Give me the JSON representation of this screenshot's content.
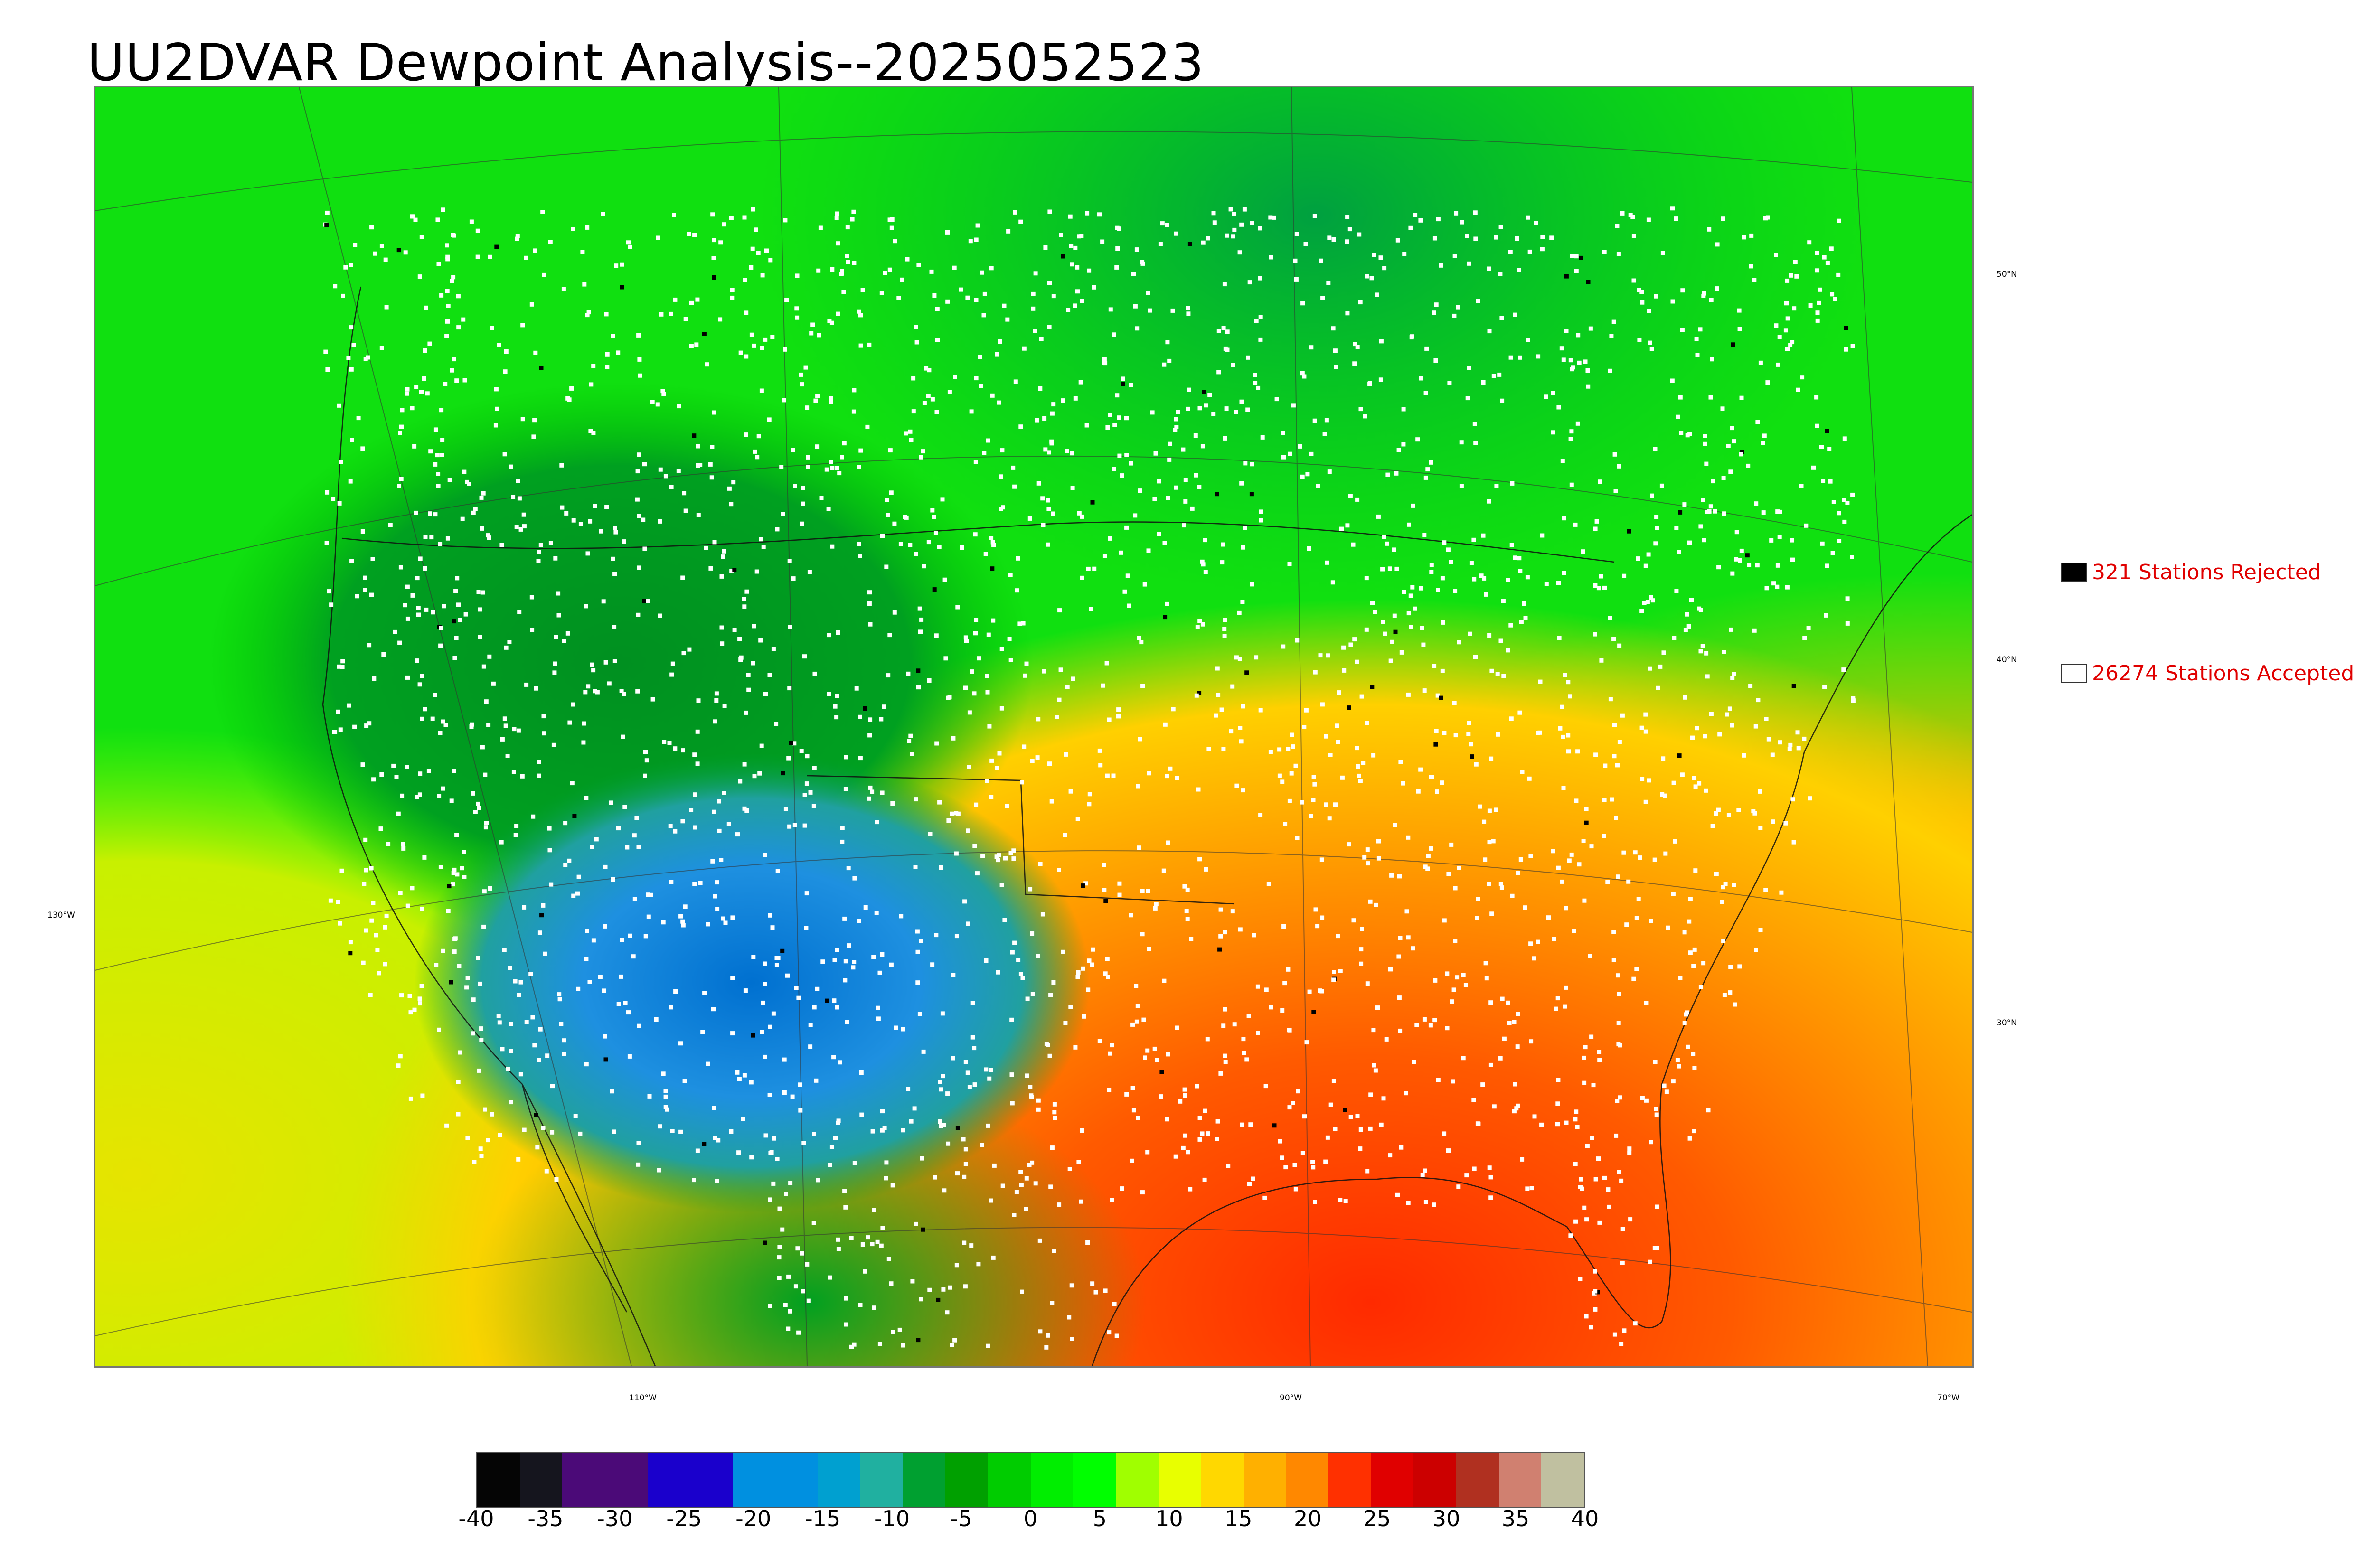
{
  "title": "UU2DVAR Dewpoint Analysis--2025052523",
  "legend": {
    "rejected": {
      "label": "321 Stations Rejected",
      "color": "#000000"
    },
    "accepted": {
      "label": "26274 Stations Accepted",
      "color": "#ffffff"
    }
  },
  "lon_labels": [
    "130°W",
    "110°W",
    "90°W",
    "70°W"
  ],
  "lat_labels": [
    "50°N",
    "40°N",
    "30°N"
  ],
  "colorbar": {
    "ticks": [
      "-40",
      "-35",
      "-30",
      "-25",
      "-20",
      "-15",
      "-10",
      "-5",
      "0",
      "5",
      "10",
      "15",
      "20",
      "25",
      "30",
      "35",
      "40"
    ],
    "colors": [
      "#050505",
      "#15151e",
      "#4b0a78",
      "#4b0a78",
      "#1a00cc",
      "#1a00cc",
      "#0090e0",
      "#0090e0",
      "#00a0d0",
      "#20b0a0",
      "#00a030",
      "#00a000",
      "#00cc00",
      "#00ee00",
      "#00ff00",
      "#a0ff00",
      "#e8ff00",
      "#ffd800",
      "#ffb000",
      "#ff8800",
      "#ff3000",
      "#e00000",
      "#cc0000",
      "#b03020",
      "#d08070",
      "#c0c0a0"
    ]
  },
  "map": {
    "description_regions": [
      {
        "name": "dry-southwest",
        "color": "#1e90e0"
      },
      {
        "name": "north-green",
        "color": "#00d000"
      },
      {
        "name": "gulf-humid",
        "color": "#ff5a10"
      },
      {
        "name": "pacific-yellow",
        "color": "#e8ef00"
      }
    ]
  }
}
